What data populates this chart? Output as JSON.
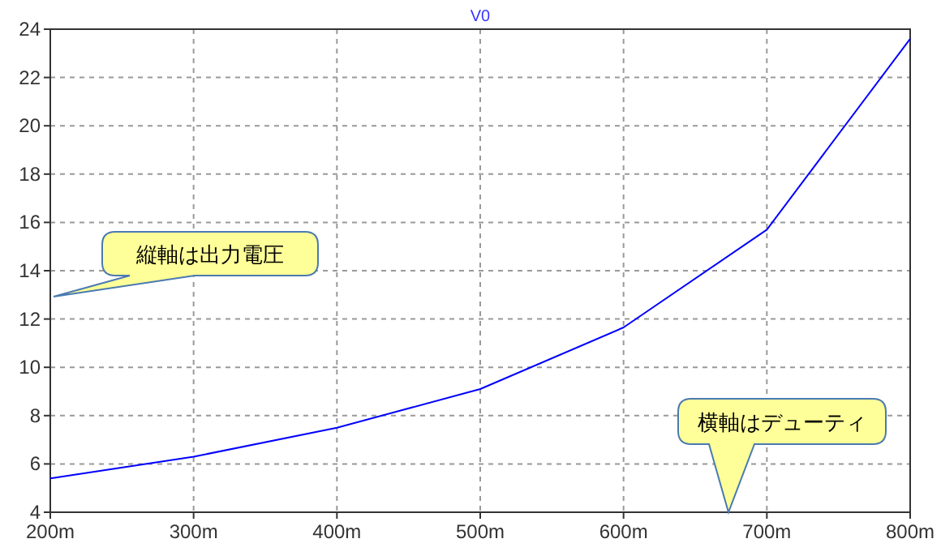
{
  "chart_data": {
    "type": "line",
    "title": "V0",
    "x": [
      200,
      300,
      400,
      500,
      600,
      700,
      800
    ],
    "series": [
      {
        "color": "#0000ff",
        "values": [
          5.4,
          6.3,
          7.5,
          9.1,
          11.65,
          15.7,
          23.6
        ]
      }
    ],
    "xlim": [
      200,
      800
    ],
    "xticks": [
      {
        "value": 200,
        "label": "200m"
      },
      {
        "value": 300,
        "label": "300m"
      },
      {
        "value": 400,
        "label": "400m"
      },
      {
        "value": 500,
        "label": "500m"
      },
      {
        "value": 600,
        "label": "600m"
      },
      {
        "value": 700,
        "label": "700m"
      },
      {
        "value": 800,
        "label": "800m"
      }
    ],
    "ylim": [
      4,
      24
    ],
    "yticks": [
      4,
      6,
      8,
      10,
      12,
      14,
      16,
      18,
      20,
      22,
      24
    ],
    "grid": true,
    "marker": "none",
    "line_style": "solid",
    "annotations": [
      "縦軸は出力電圧",
      "横軸はデューティ"
    ]
  }
}
